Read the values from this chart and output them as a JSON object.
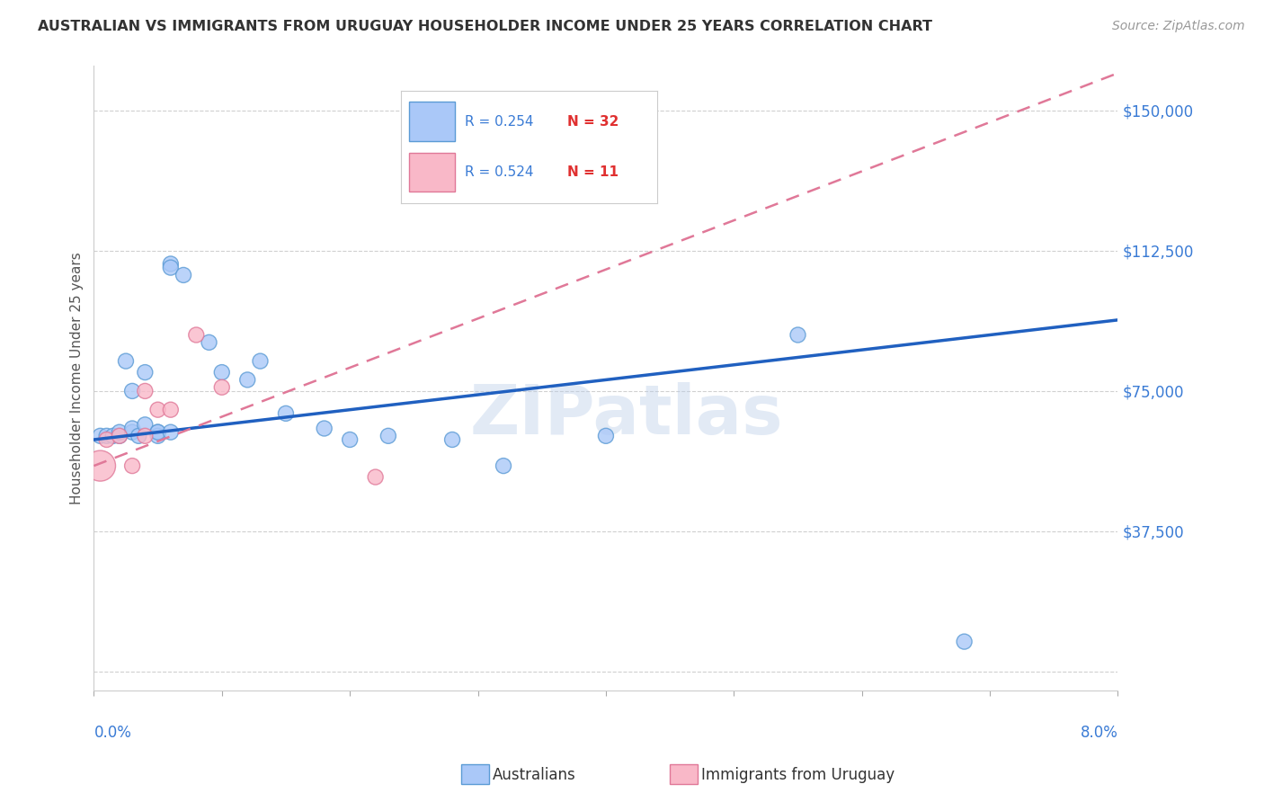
{
  "title": "AUSTRALIAN VS IMMIGRANTS FROM URUGUAY HOUSEHOLDER INCOME UNDER 25 YEARS CORRELATION CHART",
  "source": "Source: ZipAtlas.com",
  "ylabel": "Householder Income Under 25 years",
  "legend_aus_r": "R = 0.254",
  "legend_aus_n": "N = 32",
  "legend_uru_r": "R = 0.524",
  "legend_uru_n": "N = 11",
  "yticks": [
    0,
    37500,
    75000,
    112500,
    150000
  ],
  "ytick_labels": [
    "",
    "$37,500",
    "$75,000",
    "$112,500",
    "$150,000"
  ],
  "xlim": [
    0.0,
    0.08
  ],
  "ylim": [
    -5000,
    162000
  ],
  "aus_color": "#aac8f8",
  "aus_edge_color": "#5b9bd5",
  "uru_color": "#f9b8c8",
  "uru_edge_color": "#e07898",
  "trend_aus_color": "#2060c0",
  "trend_uru_color": "#e07898",
  "background": "#ffffff",
  "grid_color": "#d0d0d0",
  "watermark": "ZIPatlas",
  "aus_x": [
    0.0005,
    0.001,
    0.0015,
    0.002,
    0.002,
    0.0025,
    0.003,
    0.003,
    0.003,
    0.0035,
    0.004,
    0.004,
    0.005,
    0.005,
    0.005,
    0.006,
    0.006,
    0.006,
    0.007,
    0.009,
    0.01,
    0.012,
    0.013,
    0.015,
    0.018,
    0.02,
    0.023,
    0.028,
    0.032,
    0.04,
    0.055,
    0.068
  ],
  "aus_y": [
    63000,
    63000,
    63000,
    63000,
    64000,
    83000,
    64000,
    65000,
    75000,
    63000,
    66000,
    80000,
    64000,
    63000,
    64000,
    64000,
    109000,
    108000,
    106000,
    88000,
    80000,
    78000,
    83000,
    69000,
    65000,
    62000,
    63000,
    62000,
    55000,
    63000,
    90000,
    8000
  ],
  "aus_sizes": [
    150,
    150,
    150,
    150,
    150,
    150,
    150,
    150,
    150,
    150,
    150,
    150,
    150,
    150,
    150,
    150,
    150,
    150,
    150,
    150,
    150,
    150,
    150,
    150,
    150,
    150,
    150,
    150,
    150,
    150,
    150,
    150
  ],
  "uru_x": [
    0.0005,
    0.001,
    0.002,
    0.003,
    0.004,
    0.004,
    0.005,
    0.006,
    0.008,
    0.01,
    0.022
  ],
  "uru_y": [
    55000,
    62000,
    63000,
    55000,
    75000,
    63000,
    70000,
    70000,
    90000,
    76000,
    52000
  ],
  "uru_sizes": [
    600,
    150,
    150,
    150,
    150,
    150,
    150,
    150,
    150,
    150,
    150
  ],
  "trend_aus_x0": 0.0,
  "trend_aus_x1": 0.08,
  "trend_aus_y0": 62000,
  "trend_aus_y1": 94000,
  "trend_uru_x0": 0.0,
  "trend_uru_x1": 0.08,
  "trend_uru_y0": 55000,
  "trend_uru_y1": 160000
}
